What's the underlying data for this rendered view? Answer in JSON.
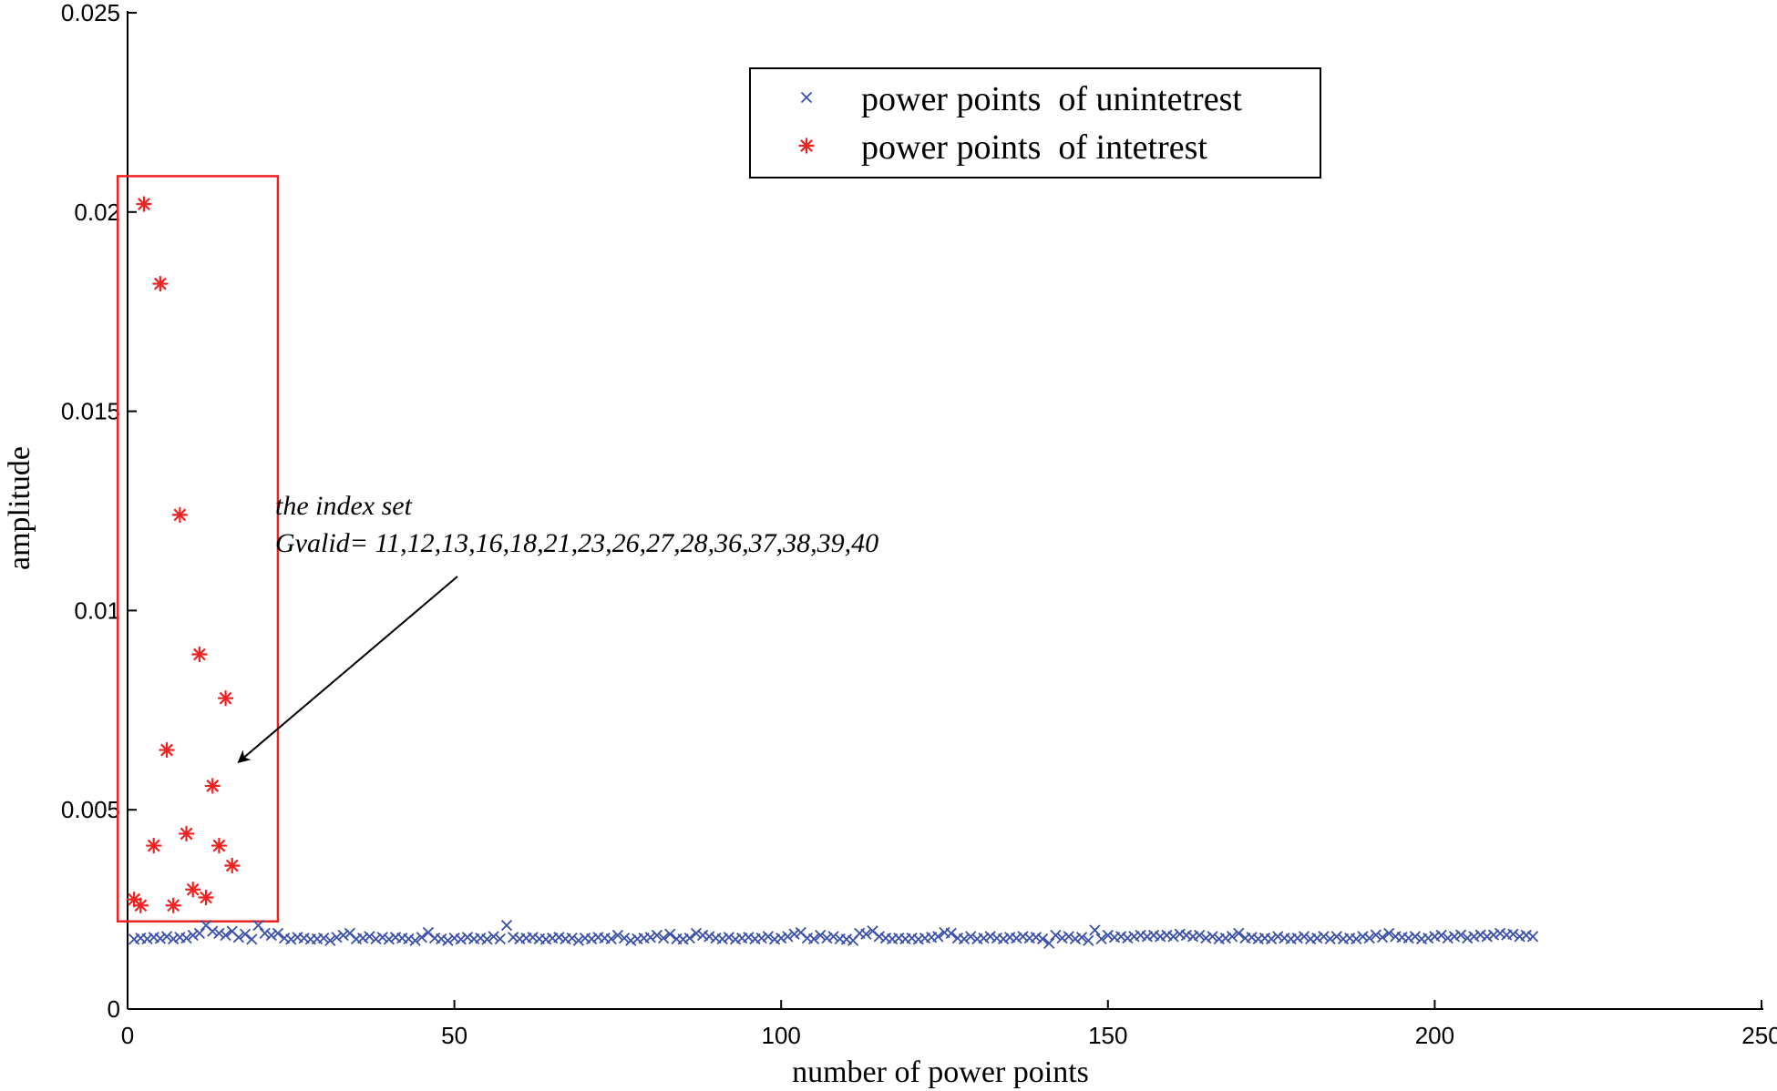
{
  "chart_data": {
    "type": "scatter",
    "xlabel": "number of power points",
    "ylabel": "amplitude",
    "xlim": [
      0,
      250
    ],
    "ylim": [
      0,
      0.025
    ],
    "xticks": [
      "0",
      "50",
      "100",
      "150",
      "200",
      "250"
    ],
    "yticks": [
      "0",
      "0.005",
      "0.01",
      "0.015",
      "0.02",
      "0.025"
    ],
    "legend_position": "top-right",
    "series": [
      {
        "name": "power points  of unintetrest",
        "marker": "x",
        "color": "#3a4fa8",
        "points": [
          [
            1,
            0.00175
          ],
          [
            2,
            0.00178
          ],
          [
            3,
            0.00176
          ],
          [
            4,
            0.0018
          ],
          [
            5,
            0.00177
          ],
          [
            6,
            0.00182
          ],
          [
            7,
            0.00176
          ],
          [
            8,
            0.0018
          ],
          [
            9,
            0.00178
          ],
          [
            10,
            0.00185
          ],
          [
            11,
            0.0019
          ],
          [
            12,
            0.0021
          ],
          [
            13,
            0.00195
          ],
          [
            14,
            0.0019
          ],
          [
            15,
            0.00185
          ],
          [
            16,
            0.00195
          ],
          [
            17,
            0.0018
          ],
          [
            18,
            0.00188
          ],
          [
            19,
            0.00175
          ],
          [
            20,
            0.0021
          ],
          [
            21,
            0.0019
          ],
          [
            22,
            0.00185
          ],
          [
            23,
            0.0019
          ],
          [
            24,
            0.00178
          ],
          [
            25,
            0.00175
          ],
          [
            26,
            0.0018
          ],
          [
            27,
            0.00178
          ],
          [
            28,
            0.00175
          ],
          [
            29,
            0.00176
          ],
          [
            30,
            0.00178
          ],
          [
            31,
            0.00172
          ],
          [
            32,
            0.0018
          ],
          [
            33,
            0.00185
          ],
          [
            34,
            0.0019
          ],
          [
            35,
            0.00176
          ],
          [
            36,
            0.00178
          ],
          [
            37,
            0.00182
          ],
          [
            38,
            0.00176
          ],
          [
            39,
            0.0018
          ],
          [
            40,
            0.00175
          ],
          [
            41,
            0.0018
          ],
          [
            42,
            0.00178
          ],
          [
            43,
            0.00176
          ],
          [
            44,
            0.00172
          ],
          [
            45,
            0.0018
          ],
          [
            46,
            0.00192
          ],
          [
            47,
            0.00178
          ],
          [
            48,
            0.00176
          ],
          [
            49,
            0.00172
          ],
          [
            50,
            0.00178
          ],
          [
            51,
            0.00175
          ],
          [
            52,
            0.0018
          ],
          [
            53,
            0.00176
          ],
          [
            54,
            0.00178
          ],
          [
            55,
            0.00175
          ],
          [
            56,
            0.00182
          ],
          [
            57,
            0.00176
          ],
          [
            58,
            0.0021
          ],
          [
            59,
            0.0018
          ],
          [
            60,
            0.00176
          ],
          [
            61,
            0.00178
          ],
          [
            62,
            0.0018
          ],
          [
            63,
            0.00176
          ],
          [
            64,
            0.00175
          ],
          [
            65,
            0.00178
          ],
          [
            66,
            0.0018
          ],
          [
            67,
            0.00176
          ],
          [
            68,
            0.00178
          ],
          [
            69,
            0.00172
          ],
          [
            70,
            0.00178
          ],
          [
            71,
            0.00176
          ],
          [
            72,
            0.0018
          ],
          [
            73,
            0.00178
          ],
          [
            74,
            0.00176
          ],
          [
            75,
            0.00185
          ],
          [
            76,
            0.00178
          ],
          [
            77,
            0.00172
          ],
          [
            78,
            0.00176
          ],
          [
            79,
            0.00178
          ],
          [
            80,
            0.0018
          ],
          [
            81,
            0.00185
          ],
          [
            82,
            0.00178
          ],
          [
            83,
            0.00188
          ],
          [
            84,
            0.00176
          ],
          [
            85,
            0.00175
          ],
          [
            86,
            0.00178
          ],
          [
            87,
            0.0019
          ],
          [
            88,
            0.00185
          ],
          [
            89,
            0.00182
          ],
          [
            90,
            0.00178
          ],
          [
            91,
            0.00176
          ],
          [
            92,
            0.0018
          ],
          [
            93,
            0.00175
          ],
          [
            94,
            0.00178
          ],
          [
            95,
            0.0018
          ],
          [
            96,
            0.00176
          ],
          [
            97,
            0.00178
          ],
          [
            98,
            0.00182
          ],
          [
            99,
            0.00175
          ],
          [
            100,
            0.00178
          ],
          [
            101,
            0.00182
          ],
          [
            102,
            0.00188
          ],
          [
            103,
            0.00192
          ],
          [
            104,
            0.00178
          ],
          [
            105,
            0.00176
          ],
          [
            106,
            0.00185
          ],
          [
            107,
            0.00178
          ],
          [
            108,
            0.00182
          ],
          [
            109,
            0.00176
          ],
          [
            110,
            0.00175
          ],
          [
            111,
            0.00172
          ],
          [
            112,
            0.0019
          ],
          [
            113,
            0.00188
          ],
          [
            114,
            0.00196
          ],
          [
            115,
            0.00182
          ],
          [
            116,
            0.00178
          ],
          [
            117,
            0.00176
          ],
          [
            118,
            0.00178
          ],
          [
            119,
            0.00176
          ],
          [
            120,
            0.00178
          ],
          [
            121,
            0.00175
          ],
          [
            122,
            0.00178
          ],
          [
            123,
            0.0018
          ],
          [
            124,
            0.00182
          ],
          [
            125,
            0.00192
          ],
          [
            126,
            0.0019
          ],
          [
            127,
            0.00178
          ],
          [
            128,
            0.00176
          ],
          [
            129,
            0.00182
          ],
          [
            130,
            0.00176
          ],
          [
            131,
            0.00178
          ],
          [
            132,
            0.00182
          ],
          [
            133,
            0.00178
          ],
          [
            134,
            0.00176
          ],
          [
            135,
            0.0018
          ],
          [
            136,
            0.00178
          ],
          [
            137,
            0.00182
          ],
          [
            138,
            0.00178
          ],
          [
            139,
            0.0018
          ],
          [
            140,
            0.00176
          ],
          [
            141,
            0.00165
          ],
          [
            142,
            0.00185
          ],
          [
            143,
            0.00178
          ],
          [
            144,
            0.00182
          ],
          [
            145,
            0.00176
          ],
          [
            146,
            0.0018
          ],
          [
            147,
            0.00172
          ],
          [
            148,
            0.00198
          ],
          [
            149,
            0.00176
          ],
          [
            150,
            0.00185
          ],
          [
            151,
            0.0018
          ],
          [
            152,
            0.00182
          ],
          [
            153,
            0.00178
          ],
          [
            154,
            0.00182
          ],
          [
            155,
            0.00185
          ],
          [
            156,
            0.00182
          ],
          [
            157,
            0.00185
          ],
          [
            158,
            0.00182
          ],
          [
            159,
            0.00185
          ],
          [
            160,
            0.00182
          ],
          [
            161,
            0.00188
          ],
          [
            162,
            0.00185
          ],
          [
            163,
            0.00182
          ],
          [
            164,
            0.00185
          ],
          [
            165,
            0.00178
          ],
          [
            166,
            0.00182
          ],
          [
            167,
            0.00176
          ],
          [
            168,
            0.00178
          ],
          [
            169,
            0.00182
          ],
          [
            170,
            0.0019
          ],
          [
            171,
            0.00178
          ],
          [
            172,
            0.0018
          ],
          [
            173,
            0.00176
          ],
          [
            174,
            0.00178
          ],
          [
            175,
            0.00176
          ],
          [
            176,
            0.00182
          ],
          [
            177,
            0.00178
          ],
          [
            178,
            0.00176
          ],
          [
            179,
            0.00178
          ],
          [
            180,
            0.00182
          ],
          [
            181,
            0.00176
          ],
          [
            182,
            0.00178
          ],
          [
            183,
            0.00182
          ],
          [
            184,
            0.00176
          ],
          [
            185,
            0.00182
          ],
          [
            186,
            0.00176
          ],
          [
            187,
            0.00178
          ],
          [
            188,
            0.00176
          ],
          [
            189,
            0.00182
          ],
          [
            190,
            0.00178
          ],
          [
            191,
            0.00186
          ],
          [
            192,
            0.0018
          ],
          [
            193,
            0.0019
          ],
          [
            194,
            0.00182
          ],
          [
            195,
            0.0018
          ],
          [
            196,
            0.00178
          ],
          [
            197,
            0.00182
          ],
          [
            198,
            0.00176
          ],
          [
            199,
            0.00178
          ],
          [
            200,
            0.00182
          ],
          [
            201,
            0.00185
          ],
          [
            202,
            0.00178
          ],
          [
            203,
            0.00182
          ],
          [
            204,
            0.00186
          ],
          [
            205,
            0.00178
          ],
          [
            206,
            0.00182
          ],
          [
            207,
            0.00186
          ],
          [
            208,
            0.00182
          ],
          [
            209,
            0.00186
          ],
          [
            210,
            0.0019
          ],
          [
            211,
            0.00186
          ],
          [
            212,
            0.00188
          ],
          [
            213,
            0.00182
          ],
          [
            214,
            0.00185
          ],
          [
            215,
            0.00182
          ]
        ]
      },
      {
        "name": "power points  of intetrest",
        "marker": "*",
        "color": "#ee2222",
        "points": [
          [
            1,
            0.00275
          ],
          [
            2,
            0.0026
          ],
          [
            2.5,
            0.0202
          ],
          [
            4,
            0.0041
          ],
          [
            5,
            0.0182
          ],
          [
            6,
            0.0065
          ],
          [
            7,
            0.0026
          ],
          [
            8,
            0.0124
          ],
          [
            9,
            0.0044
          ],
          [
            10,
            0.003
          ],
          [
            11,
            0.0089
          ],
          [
            12,
            0.0028
          ],
          [
            13,
            0.0056
          ],
          [
            14,
            0.0041
          ],
          [
            15,
            0.0078
          ],
          [
            16,
            0.0036
          ]
        ]
      }
    ],
    "annotation": {
      "line1": "the index set",
      "line2": "Gvalid= 11,12,13,16,18,21,23,26,27,28,36,37,38,39,40",
      "arrow_target": [
        17,
        0.0062
      ]
    },
    "highlight_box": {
      "x": [
        -1.5,
        23
      ],
      "y": [
        0.0022,
        0.0209
      ],
      "color": "#ee2222"
    }
  }
}
